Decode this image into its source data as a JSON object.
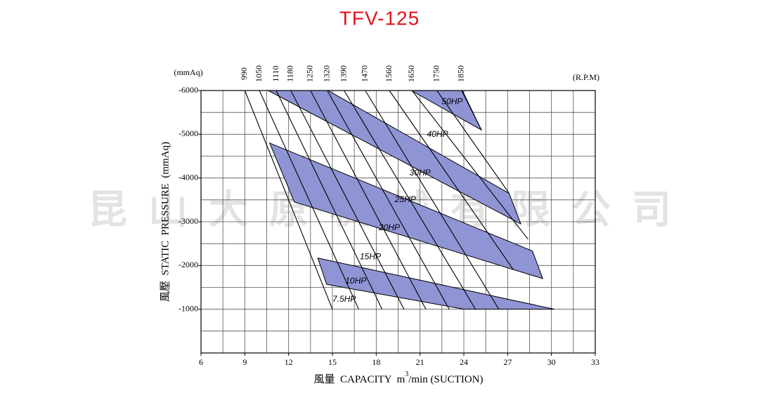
{
  "chart_data": {
    "type": "line",
    "title": "TFV-125",
    "watermark": "昆山大原机械有限公司",
    "y_unit": "(mmAq)",
    "rpm_unit": "(R.P.M)",
    "y_label": "風壓  STATIC  PRESSURE  (mmAq)",
    "x_label_parts": [
      "風量  CAPACITY  m",
      "3",
      "/min (SUCTION)"
    ],
    "xlim": [
      6,
      33
    ],
    "ylim": [
      0,
      -6000
    ],
    "xticks": [
      6,
      9,
      12,
      15,
      18,
      21,
      24,
      27,
      30,
      33
    ],
    "yticks": [
      -1000,
      -2000,
      -3000,
      -4000,
      -5000,
      -6000
    ],
    "xgrid": [
      6,
      7.5,
      9,
      10.5,
      12,
      13.5,
      15,
      16.5,
      18,
      19.5,
      21,
      22.5,
      24,
      25.5,
      27,
      28.5,
      30,
      31.5,
      33
    ],
    "ygrid": [
      0,
      -500,
      -1000,
      -1500,
      -2000,
      -2500,
      -3000,
      -3500,
      -4000,
      -4500,
      -5000,
      -5500,
      -6000
    ],
    "grid": true,
    "band_color": "#8f94d4",
    "line_color": "#000000",
    "bands": [
      {
        "x": [
          20.4,
          23.9,
          25.2
        ],
        "y": [
          -6000,
          -6000,
          -5100
        ]
      },
      {
        "x": [
          10.6,
          14.7,
          27.1,
          27.9
        ],
        "y": [
          -6000,
          -6000,
          -3650,
          -2950
        ]
      },
      {
        "x": [
          10.7,
          28.7,
          29.4,
          12.4
        ],
        "y": [
          -4800,
          -2330,
          -1700,
          -3450
        ]
      },
      {
        "x": [
          14.0,
          30.2,
          24.0,
          14.6
        ],
        "y": [
          -2170,
          -1000,
          -1000,
          -1570
        ]
      }
    ],
    "series": [
      {
        "name": "990",
        "x": [
          9.0,
          15.0
        ],
        "y": [
          -6000,
          -1000
        ]
      },
      {
        "name": "1050",
        "x": [
          10.0,
          16.8
        ],
        "y": [
          -6000,
          -1000
        ]
      },
      {
        "name": "1110",
        "x": [
          11.15,
          18.4
        ],
        "y": [
          -6000,
          -1000
        ]
      },
      {
        "name": "1180",
        "x": [
          12.15,
          19.9
        ],
        "y": [
          -6000,
          -1000
        ]
      },
      {
        "name": "1250",
        "x": [
          13.5,
          21.4
        ],
        "y": [
          -6000,
          -1000
        ]
      },
      {
        "name": "1320",
        "x": [
          14.65,
          23.0
        ],
        "y": [
          -6000,
          -1000
        ]
      },
      {
        "name": "1390",
        "x": [
          15.8,
          24.8
        ],
        "y": [
          -6000,
          -1000
        ]
      },
      {
        "name": "1470",
        "x": [
          17.25,
          26.4
        ],
        "y": [
          -6000,
          -1000
        ]
      },
      {
        "name": "1560",
        "x": [
          18.9,
          27.4
        ],
        "y": [
          -6000,
          -1900
        ]
      },
      {
        "name": "1650",
        "x": [
          20.45,
          28.4
        ],
        "y": [
          -6000,
          -2600
        ]
      },
      {
        "name": "1750",
        "x": [
          22.15,
          27.1
        ],
        "y": [
          -6000,
          -3650
        ]
      },
      {
        "name": "1850",
        "x": [
          23.85,
          25.2
        ],
        "y": [
          -6000,
          -5100
        ]
      }
    ],
    "annotations": [
      {
        "text": "50HP",
        "x": 23.2,
        "y": -5740
      },
      {
        "text": "40HP",
        "x": 22.2,
        "y": -4990
      },
      {
        "text": "30HP",
        "x": 21.0,
        "y": -4110
      },
      {
        "text": "25HP",
        "x": 20.0,
        "y": -3500
      },
      {
        "text": "20HP",
        "x": 18.9,
        "y": -2860
      },
      {
        "text": "15HP",
        "x": 17.6,
        "y": -2190
      },
      {
        "text": "10HP",
        "x": 16.6,
        "y": -1640
      },
      {
        "text": "7.5HP",
        "x": 15.8,
        "y": -1220
      }
    ]
  }
}
